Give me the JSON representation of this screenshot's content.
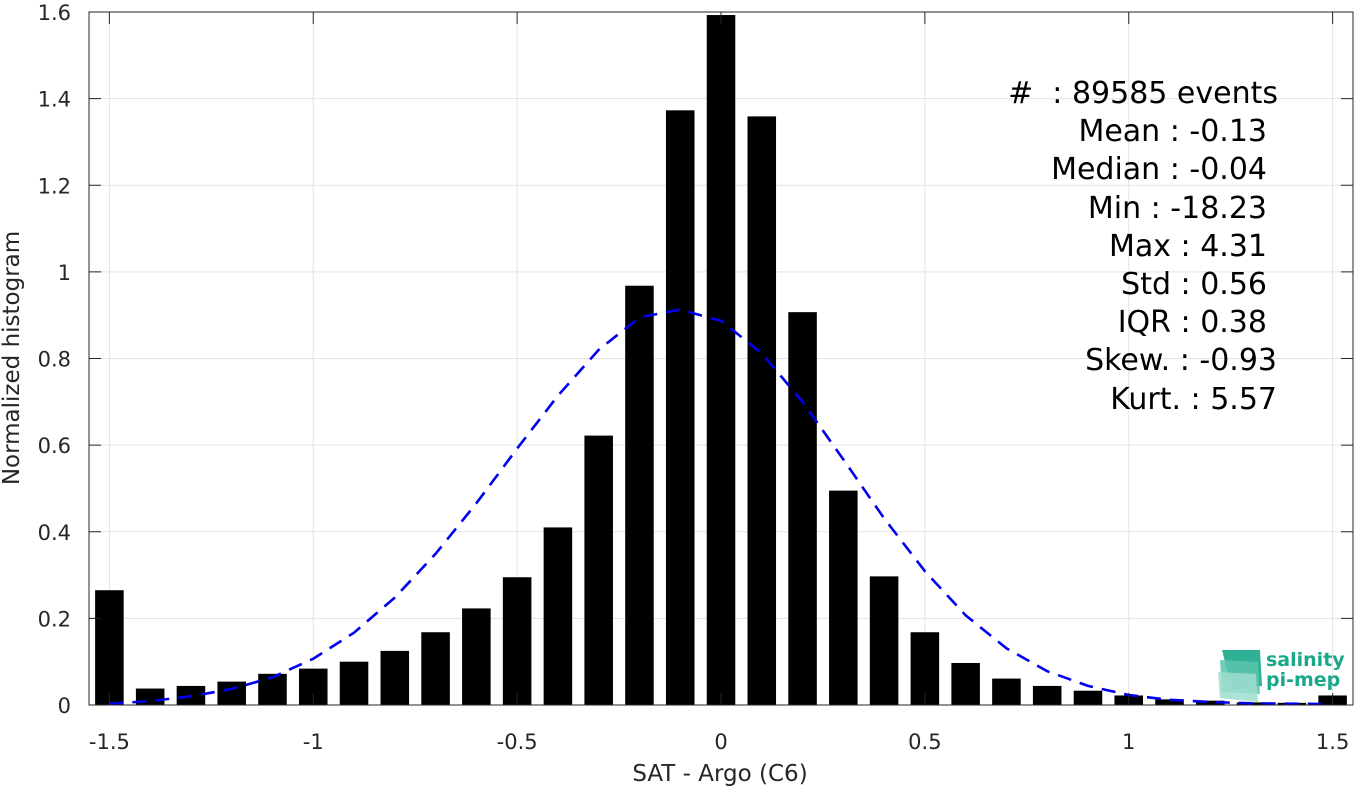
{
  "chart_data": {
    "type": "bar",
    "xlabel": "SAT - Argo (C6)",
    "ylabel": "Normalized histogram",
    "xlim": [
      -1.55,
      1.55
    ],
    "ylim": [
      0,
      1.6
    ],
    "xticks": [
      -1.5,
      -1,
      -0.5,
      0,
      0.5,
      1,
      1.5
    ],
    "xtick_labels": [
      "-1.5",
      "-1",
      "-0.5",
      "0",
      "0.5",
      "1",
      "1.5"
    ],
    "yticks": [
      0,
      0.2,
      0.4,
      0.6,
      0.8,
      1,
      1.2,
      1.4,
      1.6
    ],
    "ytick_labels": [
      "0",
      "0.2",
      "0.4",
      "0.6",
      "0.8",
      "1",
      "1.2",
      "1.4",
      "1.6"
    ],
    "grid": true,
    "bar_color": "#000000",
    "bar_width": 0.07,
    "series": [
      {
        "x": [
          -1.5,
          -1.4,
          -1.3,
          -1.2,
          -1.1,
          -1.0,
          -0.9,
          -0.8,
          -0.7,
          -0.6,
          -0.5,
          -0.4,
          -0.3,
          -0.2,
          -0.1,
          0.0,
          0.1,
          0.2,
          0.3,
          0.4,
          0.5,
          0.6,
          0.7,
          0.8,
          0.9,
          1.0,
          1.1,
          1.2,
          1.3,
          1.4,
          1.5
        ],
        "values": [
          0.265,
          0.038,
          0.044,
          0.054,
          0.072,
          0.084,
          0.1,
          0.125,
          0.168,
          0.223,
          0.295,
          0.41,
          0.622,
          0.968,
          1.373,
          1.593,
          1.359,
          0.907,
          0.495,
          0.297,
          0.168,
          0.097,
          0.061,
          0.044,
          0.033,
          0.022,
          0.013,
          0.01,
          0.006,
          0.005,
          0.022
        ]
      }
    ],
    "fit_curve": {
      "style": "dashed",
      "color": "#0000ee",
      "x": [
        -1.5,
        -1.4,
        -1.3,
        -1.2,
        -1.1,
        -1.0,
        -0.9,
        -0.8,
        -0.7,
        -0.6,
        -0.5,
        -0.4,
        -0.3,
        -0.2,
        -0.1,
        0.0,
        0.1,
        0.2,
        0.3,
        0.4,
        0.5,
        0.6,
        0.7,
        0.8,
        0.9,
        1.0,
        1.1,
        1.2,
        1.3,
        1.4,
        1.5
      ],
      "y": [
        0.003,
        0.009,
        0.02,
        0.037,
        0.064,
        0.107,
        0.167,
        0.248,
        0.349,
        0.466,
        0.592,
        0.714,
        0.82,
        0.895,
        0.913,
        0.887,
        0.812,
        0.7,
        0.567,
        0.431,
        0.309,
        0.207,
        0.131,
        0.078,
        0.044,
        0.023,
        0.012,
        0.007,
        0.004,
        0.003,
        0.002
      ]
    },
    "annotations": [
      "#  : 89585 events",
      "Mean : -0.13",
      "Median : -0.04",
      "Min : -18.23",
      "Max : 4.31",
      "Std : 0.56",
      "IQR : 0.38",
      "Skew. : -0.93",
      "Kurt. : 5.57"
    ]
  },
  "logo": {
    "line1": "salinity",
    "line2": "pi-mep",
    "color": "#1aa889"
  }
}
